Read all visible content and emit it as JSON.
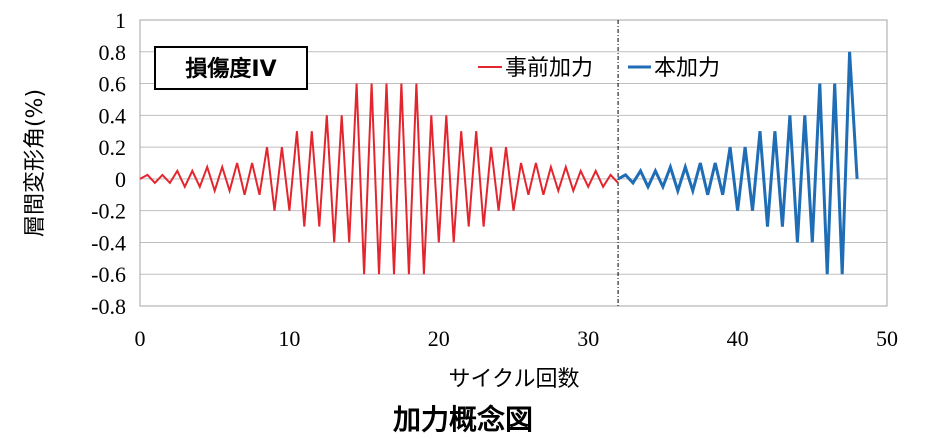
{
  "caption": "加力概念図",
  "chart_data": {
    "type": "line",
    "xlabel": "サイクル回数",
    "ylabel": "層間変形角(%)",
    "xlim": [
      0,
      50
    ],
    "ylim": [
      -0.8,
      1
    ],
    "xticks": [
      0,
      10,
      20,
      30,
      40,
      50
    ],
    "yticks": [
      1,
      0.8,
      0.6,
      0.4,
      0.2,
      0,
      -0.2,
      -0.4,
      -0.6,
      -0.8
    ],
    "ytick_labels": [
      "1",
      "0.8",
      "0.6",
      "0.4",
      "0.2",
      "0",
      "-0.2",
      "-0.4",
      "-0.6",
      "-0.8"
    ],
    "grid": "horizontal",
    "legend_position": "top-right",
    "annotation": "損傷度IV",
    "divider_x": 32,
    "series": [
      {
        "name": "事前加力",
        "color": "#e3262e",
        "x": [
          0,
          0.5,
          1,
          1.5,
          2,
          2.5,
          3,
          3.5,
          4,
          4.5,
          5,
          5.5,
          6,
          6.5,
          7,
          7.5,
          8,
          8.5,
          9,
          9.5,
          10,
          10.5,
          11,
          11.5,
          12,
          12.5,
          13,
          13.5,
          14,
          14.5,
          15,
          15.5,
          16,
          16.5,
          17,
          17.5,
          18,
          18.5,
          19,
          19.5,
          20,
          20.5,
          21,
          21.5,
          22,
          22.5,
          23,
          23.5,
          24,
          24.5,
          25,
          25.5,
          26,
          26.5,
          27,
          27.5,
          28,
          28.5,
          29,
          29.5,
          30,
          30.5,
          31,
          31.5,
          32
        ],
        "y": [
          0,
          0.025,
          -0.025,
          0.025,
          -0.025,
          0.05,
          -0.05,
          0.05,
          -0.05,
          0.075,
          -0.075,
          0.075,
          -0.075,
          0.1,
          -0.1,
          0.1,
          -0.1,
          0.2,
          -0.2,
          0.2,
          -0.2,
          0.3,
          -0.3,
          0.3,
          -0.3,
          0.4,
          -0.4,
          0.4,
          -0.4,
          0.6,
          -0.6,
          0.6,
          -0.6,
          0.6,
          -0.6,
          0.6,
          -0.6,
          0.6,
          -0.6,
          0.4,
          -0.4,
          0.4,
          -0.4,
          0.3,
          -0.3,
          0.3,
          -0.3,
          0.2,
          -0.2,
          0.2,
          -0.2,
          0.1,
          -0.1,
          0.1,
          -0.1,
          0.075,
          -0.075,
          0.075,
          -0.075,
          0.05,
          -0.05,
          0.05,
          -0.05,
          0.025,
          -0.025
        ]
      },
      {
        "name": "本加力",
        "color": "#1f6db5",
        "x": [
          32,
          32.5,
          33,
          33.5,
          34,
          34.5,
          35,
          35.5,
          36,
          36.5,
          37,
          37.5,
          38,
          38.5,
          39,
          39.5,
          40,
          40.5,
          41,
          41.5,
          42,
          42.5,
          43,
          43.5,
          44,
          44.5,
          45,
          45.5,
          46,
          46.5,
          47,
          47.5,
          48
        ],
        "y": [
          0,
          0.025,
          -0.025,
          0.05,
          -0.05,
          0.05,
          -0.05,
          0.075,
          -0.075,
          0.075,
          -0.075,
          0.1,
          -0.1,
          0.1,
          -0.1,
          0.2,
          -0.2,
          0.2,
          -0.2,
          0.3,
          -0.3,
          0.3,
          -0.3,
          0.4,
          -0.4,
          0.4,
          -0.4,
          0.6,
          -0.6,
          0.6,
          -0.6,
          0.8,
          0
        ]
      }
    ]
  }
}
